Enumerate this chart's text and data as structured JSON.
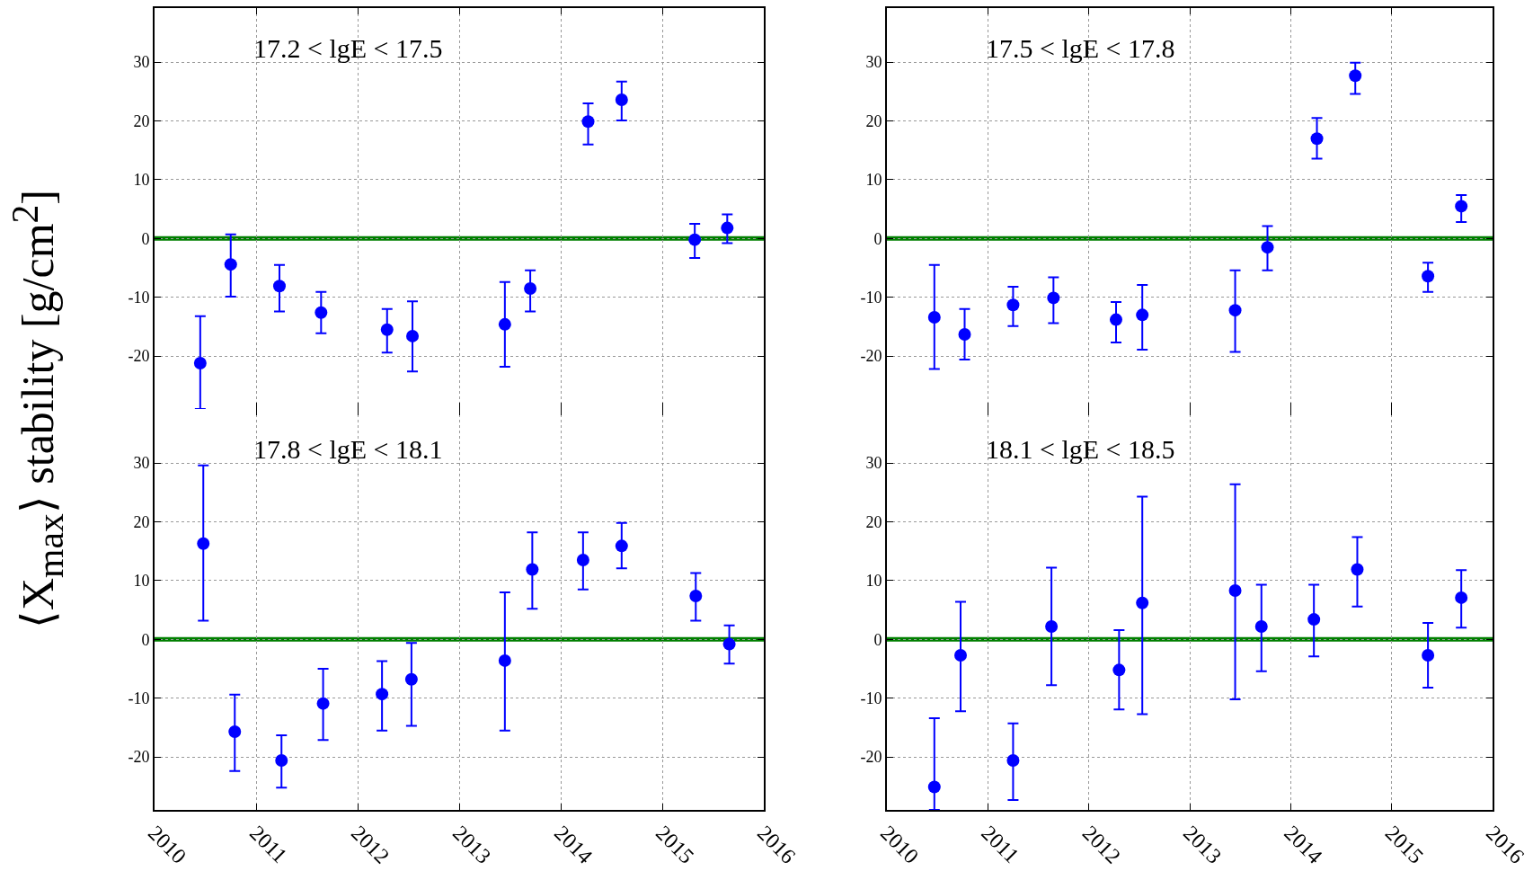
{
  "chart_data": [
    {
      "type": "scatter",
      "annotations": [
        "17.2 < lgE < 17.5"
      ],
      "ylabel": "⟨X$_{max}$⟩ stability [g/cm$^{2}$]",
      "x": [
        2010.45,
        2010.75,
        2011.23,
        2011.64,
        2012.29,
        2012.54,
        2013.45,
        2013.7,
        2014.27,
        2014.6,
        2015.32,
        2015.64
      ],
      "values": [
        -21.2,
        -4.4,
        -8.1,
        -12.6,
        -15.5,
        -16.6,
        -14.6,
        -8.5,
        19.9,
        23.6,
        -0.2,
        1.8
      ],
      "errors": [
        [
          -29,
          -13.2
        ],
        [
          -9.9,
          0.7
        ],
        [
          -12.4,
          -4.5
        ],
        [
          -16.1,
          -9.1
        ],
        [
          -19.4,
          -12.0
        ],
        [
          -22.6,
          -10.7
        ],
        [
          -21.8,
          -7.4
        ],
        [
          -12.4,
          -5.4
        ],
        [
          16.0,
          23.0
        ],
        [
          20.1,
          26.7
        ],
        [
          -3.3,
          2.5
        ],
        [
          -0.8,
          4.1
        ]
      ],
      "color": "#0000ff",
      "marker": "circle",
      "grid": true,
      "tick_labels": "y",
      "xlim": [
        2010,
        2016
      ],
      "xticks": [
        2010,
        2011,
        2012,
        2013,
        2014,
        2015,
        2016
      ],
      "ylim": [
        -29,
        39.2
      ],
      "yticks": [
        -20,
        -10,
        0,
        10,
        20,
        30
      ],
      "ref_lines": [
        {
          "axis": "y",
          "value": 0,
          "color": "#007f00"
        }
      ]
    },
    {
      "type": "scatter",
      "annotations": [
        "17.5 < lgE < 17.8"
      ],
      "x": [
        2010.47,
        2010.77,
        2011.25,
        2011.65,
        2012.27,
        2012.53,
        2013.45,
        2013.77,
        2014.26,
        2014.64,
        2015.36,
        2015.69
      ],
      "values": [
        -13.4,
        -16.3,
        -11.3,
        -10.1,
        -13.8,
        -13.0,
        -12.2,
        -1.5,
        17.0,
        27.7,
        -6.4,
        5.5
      ],
      "errors": [
        [
          -22.2,
          -4.5
        ],
        [
          -20.6,
          -12.0
        ],
        [
          -14.9,
          -8.2
        ],
        [
          -14.4,
          -6.6
        ],
        [
          -17.7,
          -10.8
        ],
        [
          -18.9,
          -7.9
        ],
        [
          -19.3,
          -5.4
        ],
        [
          -5.4,
          2.1
        ],
        [
          13.6,
          20.5
        ],
        [
          24.6,
          29.9
        ],
        [
          -9.1,
          -4.1
        ],
        [
          2.8,
          7.4
        ]
      ],
      "color": "#0000ff",
      "marker": "circle",
      "grid": true,
      "tick_labels": "y",
      "xlim": [
        2010,
        2016
      ],
      "xticks": [
        2010,
        2011,
        2012,
        2013,
        2014,
        2015,
        2016
      ],
      "ylim": [
        -29,
        39.2
      ],
      "yticks": [
        -20,
        -10,
        0,
        10,
        20,
        30
      ],
      "ref_lines": [
        {
          "axis": "y",
          "value": 0,
          "color": "#007f00"
        }
      ]
    },
    {
      "type": "scatter",
      "annotations": [
        "17.8 < lgE < 18.1"
      ],
      "x": [
        2010.48,
        2010.79,
        2011.25,
        2011.66,
        2012.24,
        2012.53,
        2013.45,
        2013.72,
        2014.22,
        2014.6,
        2015.33,
        2015.66
      ],
      "values": [
        16.3,
        -15.7,
        -20.6,
        -10.9,
        -9.3,
        -6.8,
        -3.6,
        11.9,
        13.5,
        15.9,
        7.4,
        -0.8
      ],
      "errors": [
        [
          3.2,
          29.6
        ],
        [
          -22.4,
          -9.4
        ],
        [
          -25.2,
          -16.3
        ],
        [
          -17.1,
          -5.0
        ],
        [
          -15.5,
          -3.7
        ],
        [
          -14.7,
          -0.6
        ],
        [
          -15.5,
          8.0
        ],
        [
          5.2,
          18.2
        ],
        [
          8.5,
          18.2
        ],
        [
          12.1,
          19.8
        ],
        [
          3.2,
          11.3
        ],
        [
          -4.1,
          2.4
        ]
      ],
      "color": "#0000ff",
      "marker": "circle",
      "grid": true,
      "xlim": [
        2010,
        2016
      ],
      "xticks": [
        2010,
        2011,
        2012,
        2013,
        2014,
        2015,
        2016
      ],
      "ylim": [
        -29,
        39.2
      ],
      "yticks": [
        -20,
        -10,
        0,
        10,
        20,
        30
      ],
      "ref_lines": [
        {
          "axis": "y",
          "value": 0,
          "color": "#007f00"
        }
      ]
    },
    {
      "type": "scatter",
      "annotations": [
        "18.1 < lgE < 18.5"
      ],
      "x": [
        2010.47,
        2010.73,
        2011.25,
        2011.63,
        2012.3,
        2012.53,
        2013.45,
        2013.71,
        2014.23,
        2014.66,
        2015.36,
        2015.69
      ],
      "values": [
        -25.1,
        -2.7,
        -20.6,
        2.2,
        -5.2,
        6.2,
        8.3,
        2.2,
        3.4,
        11.9,
        -2.7,
        7.1
      ],
      "errors": [
        [
          -29,
          -13.4
        ],
        [
          -12.2,
          6.4
        ],
        [
          -27.3,
          -14.3
        ],
        [
          -7.8,
          12.2
        ],
        [
          -11.9,
          1.6
        ],
        [
          -12.7,
          24.3
        ],
        [
          -10.2,
          26.4
        ],
        [
          -5.4,
          9.3
        ],
        [
          -2.9,
          9.3
        ],
        [
          5.6,
          17.4
        ],
        [
          -8.2,
          2.8
        ],
        [
          2.0,
          11.8
        ]
      ],
      "color": "#0000ff",
      "marker": "circle",
      "grid": true,
      "xlim": [
        2010,
        2016
      ],
      "xticks": [
        2010,
        2011,
        2012,
        2013,
        2014,
        2015,
        2016
      ],
      "ylim": [
        -29,
        39.2
      ],
      "yticks": [
        -20,
        -10,
        0,
        10,
        20,
        30
      ],
      "ref_lines": [
        {
          "axis": "y",
          "value": 0,
          "color": "#007f00"
        }
      ]
    }
  ]
}
